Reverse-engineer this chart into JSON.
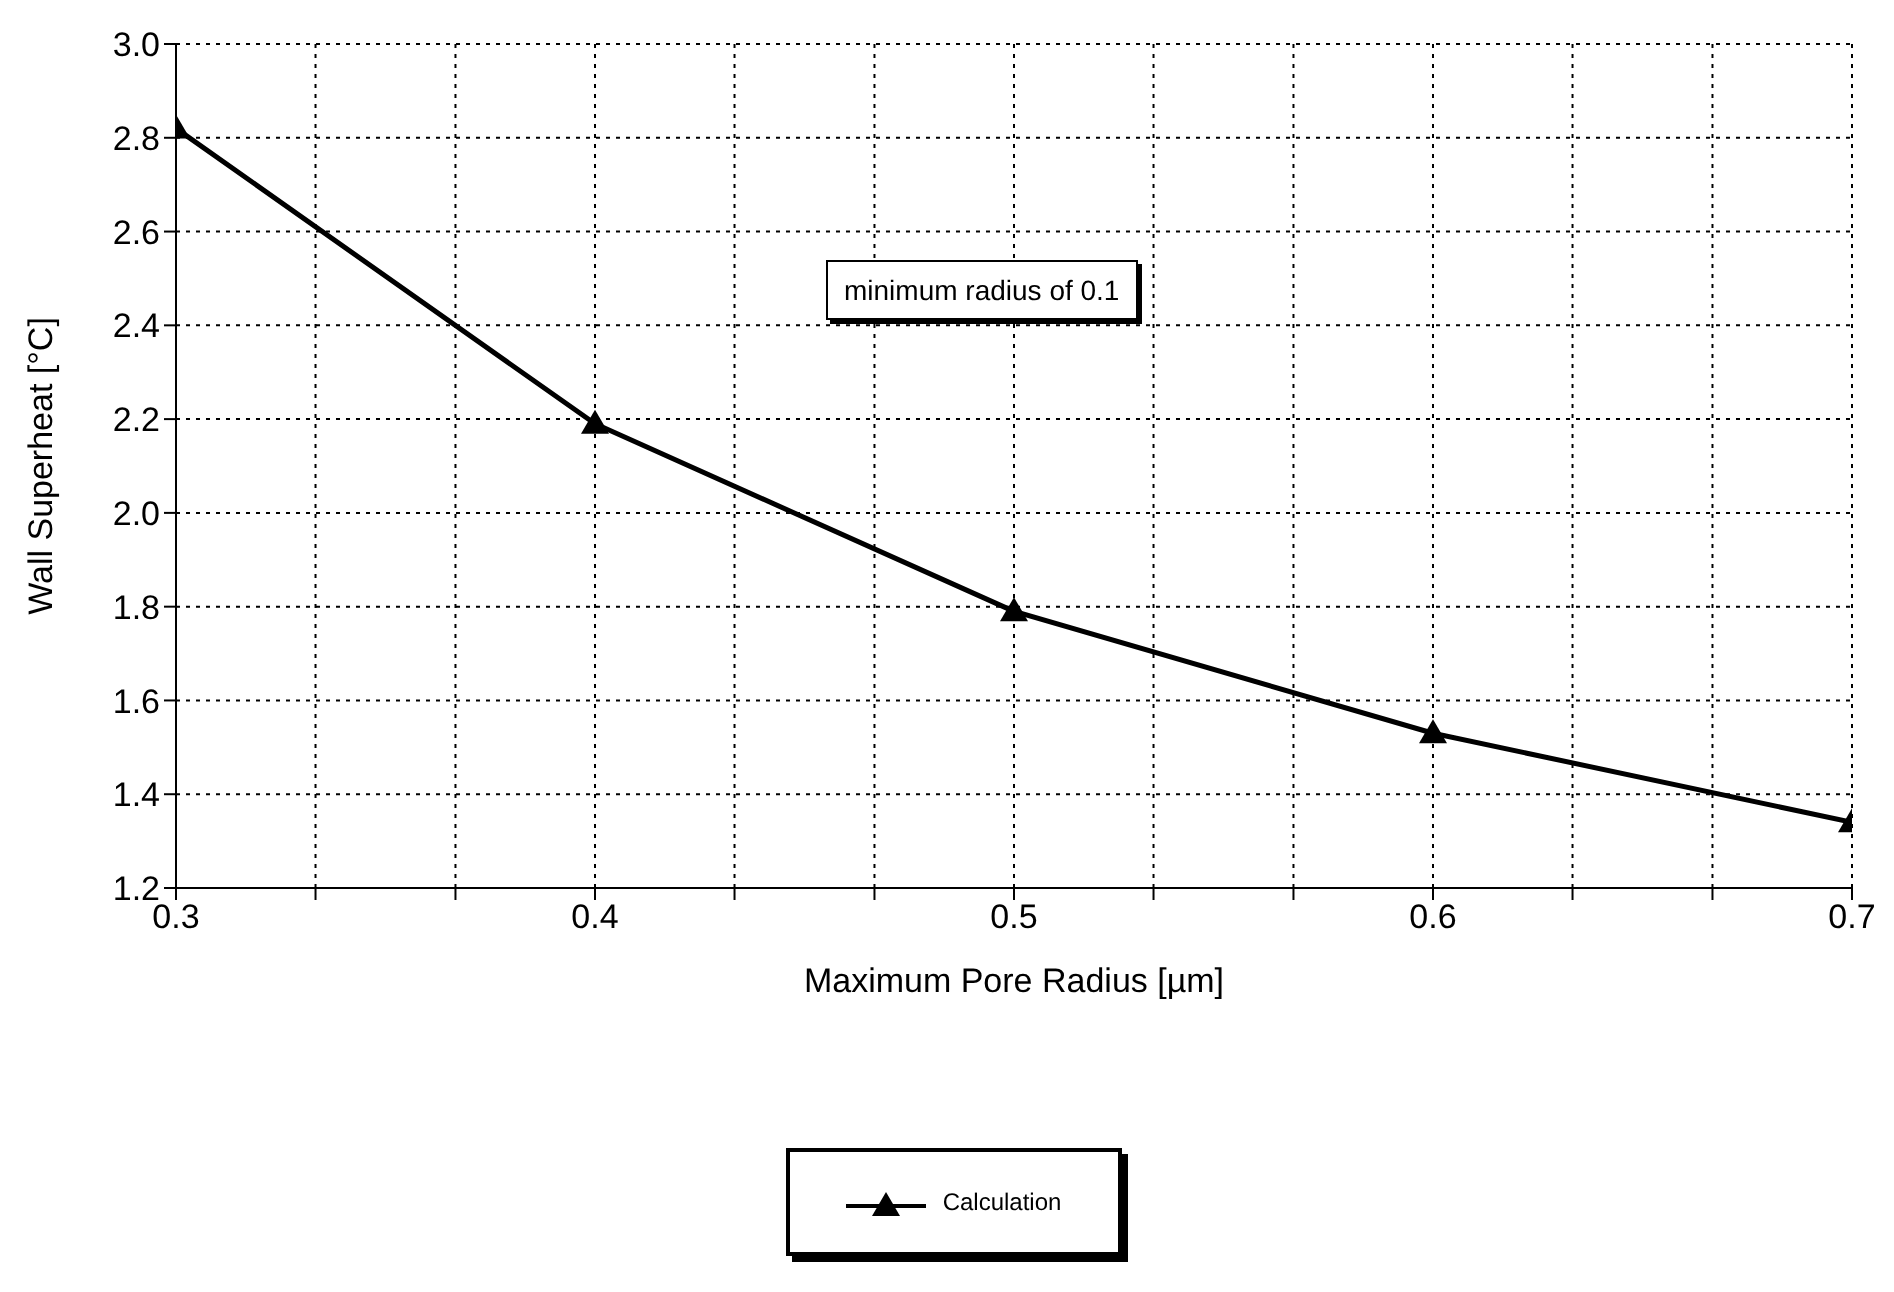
{
  "chart_data": {
    "type": "line",
    "xlabel": "Maximum Pore Radius [µm]",
    "ylabel": "Wall Superheat [°C]",
    "x": [
      0.3,
      0.4,
      0.5,
      0.6,
      0.7
    ],
    "series": [
      {
        "name": "Calculation",
        "color": "#000000",
        "values": [
          2.82,
          2.19,
          1.79,
          1.53,
          1.34
        ]
      }
    ],
    "xlim": [
      0.3,
      0.7
    ],
    "xticks": [
      0.3,
      {
        "value": 0.3333,
        "label": null
      },
      {
        "value": 0.3667,
        "label": null
      },
      0.4,
      {
        "value": 0.4333,
        "label": null
      },
      {
        "value": 0.4667,
        "label": null
      },
      0.5,
      {
        "value": 0.5333,
        "label": null
      },
      {
        "value": 0.5667,
        "label": null
      },
      0.6,
      {
        "value": 0.6333,
        "label": null
      },
      {
        "value": 0.6667,
        "label": null
      },
      0.7
    ],
    "ylim": [
      1.2,
      3.0
    ],
    "yticks": [
      {
        "value": 1.2,
        "label": "1.2"
      },
      1.4,
      1.6,
      1.8,
      {
        "value": 2.0,
        "label": "2.0"
      },
      2.2,
      2.4,
      2.6,
      2.8,
      {
        "value": 3.0,
        "label": "3.0"
      }
    ],
    "grid": true,
    "legend": "bottom",
    "marker": "triangle",
    "line_style": "solid",
    "annotations": [
      "minimum radius of 0.1"
    ]
  }
}
